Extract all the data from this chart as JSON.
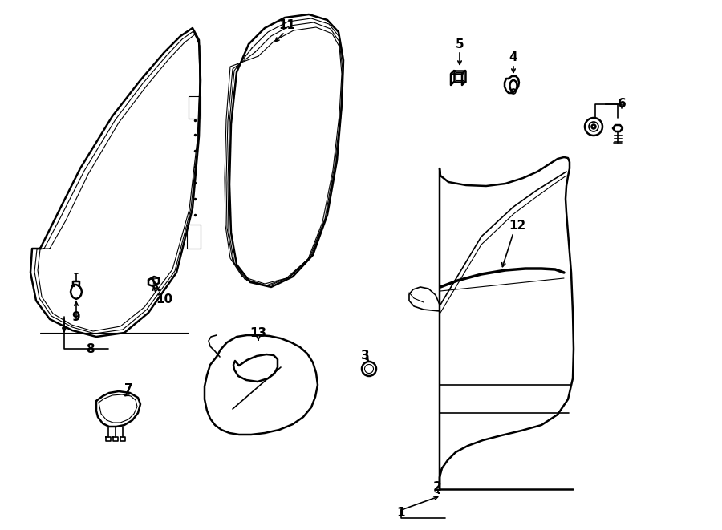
{
  "bg_color": "#ffffff",
  "line_color": "#000000",
  "lw_thick": 1.8,
  "lw_mid": 1.2,
  "lw_thin": 0.8
}
